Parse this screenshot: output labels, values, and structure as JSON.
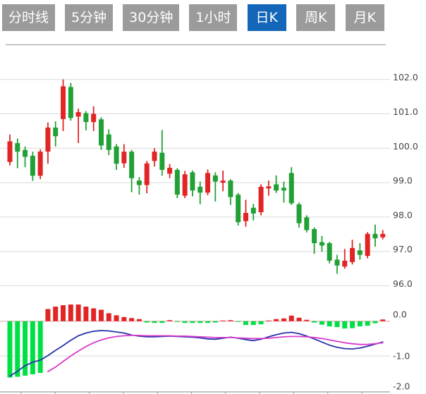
{
  "tabs": {
    "items": [
      {
        "label": "分时线",
        "active": false
      },
      {
        "label": "5分钟",
        "active": false
      },
      {
        "label": "30分钟",
        "active": false
      },
      {
        "label": "1小时",
        "active": false
      },
      {
        "label": "日K",
        "active": true
      },
      {
        "label": "周K",
        "active": false
      },
      {
        "label": "月K",
        "active": false
      }
    ]
  },
  "colors": {
    "up": "#e12525",
    "down": "#21a135",
    "hist_up": "#e12525",
    "hist_down": "#00e044",
    "dif_line": "#2832aa",
    "dea_line": "#d939cc",
    "zero_line": "#e9aab2",
    "grid": "#d9d9d9",
    "pane_border": "#b5b5b5",
    "bottom_axis": "#c2c2c2",
    "tick": "#9a9a9a",
    "axis_text": "#444444",
    "tab_bg": "#9b9b9b",
    "tab_active_bg": "#1467b8",
    "tab_text": "#ffffff",
    "background": "#ffffff"
  },
  "chart_data": {
    "type": "candlestick",
    "title": "",
    "xlabel": "",
    "ylabel": "",
    "legend": [],
    "grid": true,
    "panes": [
      "price",
      "macd"
    ],
    "price_axis": {
      "side": "right",
      "tick_labels": [
        "102.0",
        "101.0",
        "100.0",
        "99.0",
        "98.0",
        "97.0",
        "96.0"
      ],
      "tick_values": [
        102,
        101,
        100,
        99,
        98,
        97,
        96
      ],
      "range": [
        95.45,
        103.0
      ]
    },
    "macd_axis": {
      "side": "right",
      "tick_labels": [
        "0.0",
        "-1.0",
        "-2.0"
      ],
      "tick_values": [
        0,
        -1,
        -2
      ],
      "range": [
        -2.05,
        0.35
      ]
    },
    "candles_ohlc": [
      [
        99.6,
        100.4,
        99.5,
        100.2
      ],
      [
        100.15,
        100.28,
        99.42,
        99.9
      ],
      [
        99.95,
        100.05,
        99.45,
        99.75
      ],
      [
        99.78,
        99.9,
        99.05,
        99.2
      ],
      [
        99.2,
        99.97,
        99.1,
        99.9
      ],
      [
        99.9,
        100.75,
        99.55,
        100.6
      ],
      [
        100.6,
        100.78,
        100.05,
        100.35
      ],
      [
        100.85,
        102.0,
        100.5,
        101.8
      ],
      [
        101.78,
        101.9,
        100.8,
        100.88
      ],
      [
        100.92,
        101.15,
        100.15,
        101.05
      ],
      [
        101.02,
        101.08,
        100.52,
        100.76
      ],
      [
        100.76,
        101.22,
        100.5,
        101.0
      ],
      [
        100.84,
        100.9,
        99.95,
        100.08
      ],
      [
        100.4,
        100.55,
        99.8,
        99.95
      ],
      [
        100.05,
        100.12,
        99.37,
        99.55
      ],
      [
        99.56,
        100.12,
        99.43,
        99.9
      ],
      [
        99.9,
        99.95,
        98.72,
        99.13
      ],
      [
        99.06,
        99.16,
        98.65,
        98.93
      ],
      [
        98.93,
        99.63,
        98.69,
        99.56
      ],
      [
        99.63,
        100.0,
        99.47,
        99.9
      ],
      [
        99.87,
        100.53,
        99.2,
        99.37
      ],
      [
        99.26,
        99.54,
        99.13,
        99.43
      ],
      [
        99.37,
        99.42,
        98.55,
        98.65
      ],
      [
        98.62,
        99.34,
        98.55,
        99.24
      ],
      [
        99.3,
        99.35,
        98.6,
        98.77
      ],
      [
        98.88,
        99.03,
        98.37,
        98.71
      ],
      [
        98.71,
        99.38,
        98.63,
        99.28
      ],
      [
        99.21,
        99.3,
        98.45,
        99.03
      ],
      [
        99.0,
        99.35,
        98.75,
        99.06
      ],
      [
        99.06,
        99.1,
        98.35,
        98.58
      ],
      [
        98.65,
        98.7,
        97.75,
        97.85
      ],
      [
        97.88,
        98.5,
        97.72,
        98.12
      ],
      [
        98.27,
        98.38,
        97.9,
        98.1
      ],
      [
        98.14,
        98.95,
        98.05,
        98.88
      ],
      [
        98.83,
        99.06,
        98.62,
        98.89
      ],
      [
        98.95,
        99.21,
        98.7,
        98.77
      ],
      [
        98.85,
        99.03,
        98.42,
        98.77
      ],
      [
        99.28,
        99.45,
        98.35,
        98.4
      ],
      [
        98.37,
        98.42,
        97.69,
        97.82
      ],
      [
        97.99,
        98.05,
        97.55,
        97.62
      ],
      [
        97.65,
        97.7,
        96.93,
        97.24
      ],
      [
        97.27,
        97.45,
        96.99,
        97.17
      ],
      [
        97.24,
        97.28,
        96.65,
        96.73
      ],
      [
        96.76,
        96.9,
        96.35,
        96.59
      ],
      [
        96.56,
        97.07,
        96.5,
        96.73
      ],
      [
        96.69,
        97.34,
        96.62,
        97.1
      ],
      [
        97.03,
        97.24,
        96.76,
        96.9
      ],
      [
        96.87,
        97.56,
        96.8,
        97.51
      ],
      [
        97.51,
        97.78,
        97.14,
        97.38
      ],
      [
        97.41,
        97.62,
        97.35,
        97.51
      ]
    ],
    "macd": {
      "histogram": [
        -1.62,
        -1.6,
        -1.57,
        -1.53,
        -1.49,
        0.35,
        0.42,
        0.46,
        0.48,
        0.48,
        0.42,
        0.37,
        0.33,
        0.23,
        0.17,
        0.12,
        0.09,
        0.06,
        -0.04,
        -0.05,
        -0.05,
        0.03,
        -0.02,
        -0.05,
        -0.05,
        -0.05,
        -0.05,
        -0.04,
        0.01,
        0.03,
        -0.01,
        -0.11,
        -0.11,
        -0.09,
        0.01,
        0.06,
        0.08,
        0.16,
        0.1,
        0.04,
        -0.04,
        -0.1,
        -0.15,
        -0.17,
        -0.21,
        -0.2,
        -0.15,
        -0.13,
        -0.06,
        0.05
      ],
      "dif": [
        -1.58,
        -1.44,
        -1.28,
        -1.18,
        -1.12,
        -0.99,
        -0.84,
        -0.7,
        -0.55,
        -0.42,
        -0.34,
        -0.29,
        -0.27,
        -0.28,
        -0.31,
        -0.34,
        -0.4,
        -0.43,
        -0.45,
        -0.45,
        -0.44,
        -0.43,
        -0.44,
        -0.45,
        -0.46,
        -0.48,
        -0.51,
        -0.52,
        -0.49,
        -0.46,
        -0.49,
        -0.53,
        -0.56,
        -0.52,
        -0.45,
        -0.39,
        -0.34,
        -0.32,
        -0.36,
        -0.43,
        -0.51,
        -0.6,
        -0.69,
        -0.75,
        -0.79,
        -0.8,
        -0.77,
        -0.72,
        -0.66,
        -0.6
      ],
      "dea": [
        null,
        null,
        null,
        null,
        null,
        -1.45,
        -1.32,
        -1.16,
        -1.0,
        -0.86,
        -0.73,
        -0.62,
        -0.54,
        -0.48,
        -0.44,
        -0.42,
        -0.41,
        -0.41,
        -0.42,
        -0.42,
        -0.42,
        -0.42,
        -0.43,
        -0.43,
        -0.44,
        -0.45,
        -0.46,
        -0.47,
        -0.47,
        -0.47,
        -0.48,
        -0.49,
        -0.5,
        -0.5,
        -0.49,
        -0.47,
        -0.45,
        -0.44,
        -0.44,
        -0.45,
        -0.47,
        -0.5,
        -0.54,
        -0.58,
        -0.62,
        -0.65,
        -0.67,
        -0.67,
        -0.65,
        -0.62
      ]
    }
  }
}
